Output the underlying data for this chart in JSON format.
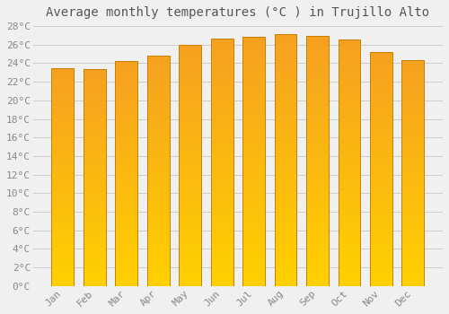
{
  "title": "Average monthly temperatures (°C ) in Trujillo Alto",
  "months": [
    "Jan",
    "Feb",
    "Mar",
    "Apr",
    "May",
    "Jun",
    "Jul",
    "Aug",
    "Sep",
    "Oct",
    "Nov",
    "Dec"
  ],
  "values": [
    23.5,
    23.4,
    24.2,
    24.8,
    26.0,
    26.7,
    26.8,
    27.1,
    26.9,
    26.6,
    25.2,
    24.3
  ],
  "bar_color_bottom": "#FFD000",
  "bar_color_top": "#F5A020",
  "bar_edge_color": "#C88000",
  "ylim": [
    0,
    28
  ],
  "yticks": [
    0,
    2,
    4,
    6,
    8,
    10,
    12,
    14,
    16,
    18,
    20,
    22,
    24,
    26,
    28
  ],
  "ytick_labels": [
    "0°C",
    "2°C",
    "4°C",
    "6°C",
    "8°C",
    "10°C",
    "12°C",
    "14°C",
    "16°C",
    "18°C",
    "20°C",
    "22°C",
    "24°C",
    "26°C",
    "28°C"
  ],
  "background_color": "#f0f0f0",
  "grid_color": "#cccccc",
  "title_fontsize": 10,
  "tick_fontsize": 8,
  "bar_width": 0.7
}
